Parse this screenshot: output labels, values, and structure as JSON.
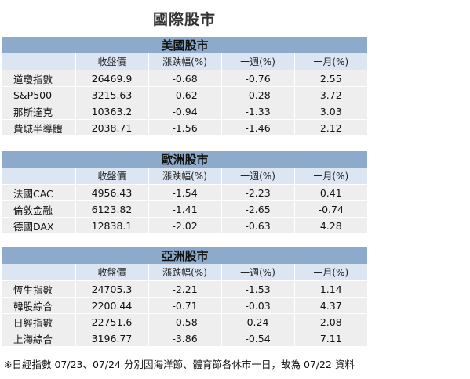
{
  "title": "國際股市",
  "columns": [
    "",
    "收盤價",
    "漲跌幅(%)",
    "一週(%)",
    "一月(%)"
  ],
  "sections": [
    {
      "name": "美國股市",
      "rows": [
        [
          "道瓊指數",
          "26469.9",
          "-0.68",
          "-0.76",
          "2.55"
        ],
        [
          "S&P500",
          "3215.63",
          "-0.62",
          "-0.28",
          "3.72"
        ],
        [
          "那斯達克",
          "10363.2",
          "-0.94",
          "-1.33",
          "3.03"
        ],
        [
          "費城半導體",
          "2038.71",
          "-1.56",
          "-1.46",
          "2.12"
        ]
      ]
    },
    {
      "name": "歐洲股市",
      "rows": [
        [
          "法國CAC",
          "4956.43",
          "-1.54",
          "-2.23",
          "0.41"
        ],
        [
          "倫敦金融",
          "6123.82",
          "-1.41",
          "-2.65",
          "-0.74"
        ],
        [
          "德國DAX",
          "12838.1",
          "-2.02",
          "-0.63",
          "4.28"
        ]
      ]
    },
    {
      "name": "亞洲股市",
      "rows": [
        [
          "恆生指數",
          "24705.3",
          "-2.21",
          "-1.53",
          "1.14"
        ],
        [
          "韓股綜合",
          "2200.44",
          "-0.71",
          "-0.03",
          "4.37"
        ],
        [
          "日經指數",
          "22751.6",
          "-0.58",
          "0.24",
          "2.08"
        ],
        [
          "上海綜合",
          "3196.77",
          "-3.86",
          "-0.54",
          "7.11"
        ]
      ]
    }
  ],
  "footnote": "※日經指數 07/23、07/24 分別因海洋節、體育節各休市一日，故為 07/22 資料",
  "colors": {
    "section_header": "#8eaacb",
    "column_header": "#dce6f2",
    "row_background": "#eeeeee"
  }
}
